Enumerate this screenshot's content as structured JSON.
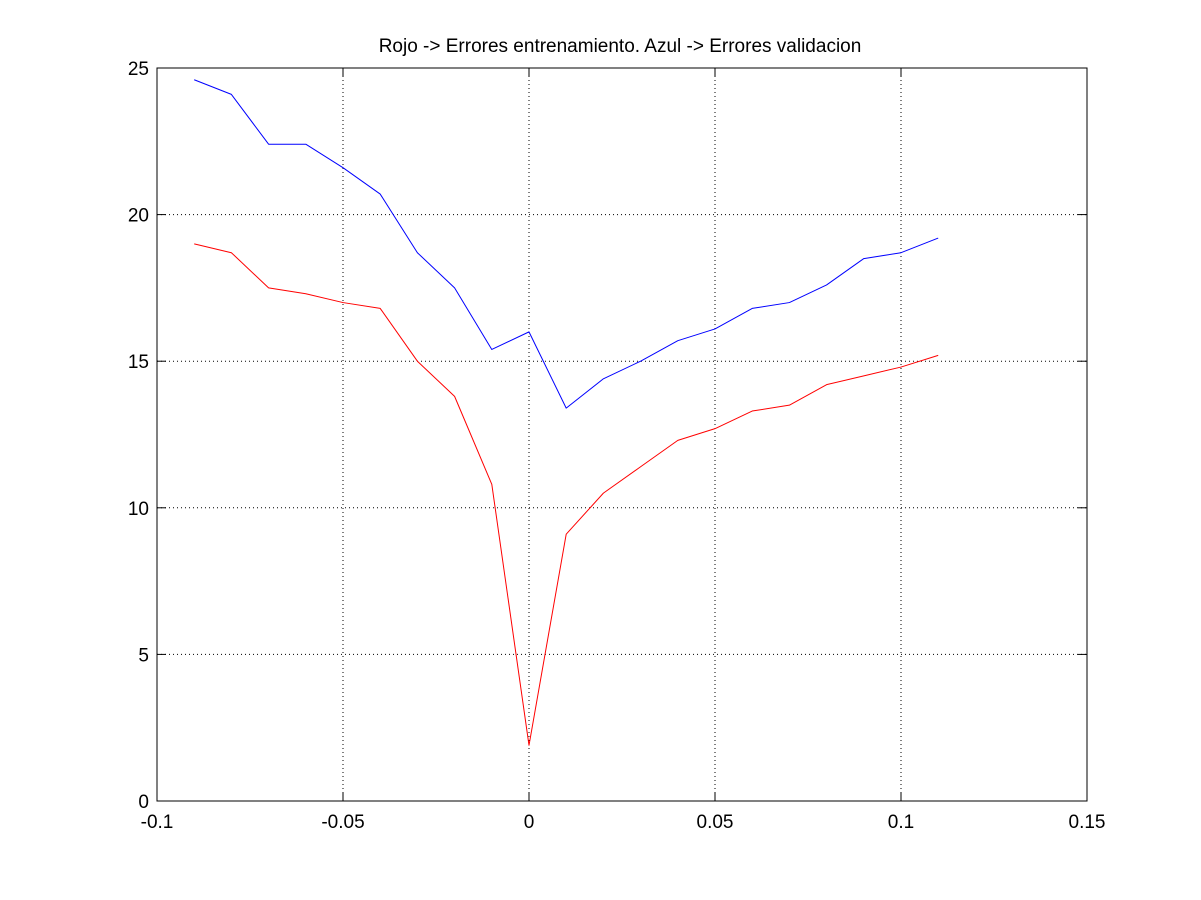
{
  "chart_data": {
    "type": "line",
    "title": "Rojo -> Errores entrenamiento. Azul -> Errores validacion",
    "xlabel": "",
    "ylabel": "",
    "xlim": [
      -0.1,
      0.15
    ],
    "ylim": [
      0,
      25
    ],
    "xticks": [
      -0.1,
      -0.05,
      0,
      0.05,
      0.1,
      0.15
    ],
    "xtick_labels": [
      "-0.1",
      "-0.05",
      "0",
      "0.05",
      "0.1",
      "0.15"
    ],
    "yticks": [
      0,
      5,
      10,
      15,
      20,
      25
    ],
    "ytick_labels": [
      "0",
      "5",
      "10",
      "15",
      "20",
      "25"
    ],
    "grid": true,
    "x": [
      -0.09,
      -0.08,
      -0.07,
      -0.06,
      -0.05,
      -0.04,
      -0.03,
      -0.02,
      -0.01,
      0,
      0.01,
      0.02,
      0.03,
      0.04,
      0.05,
      0.06,
      0.07,
      0.08,
      0.09,
      0.1,
      0.11
    ],
    "series": [
      {
        "color": "#0000ff",
        "values": [
          24.6,
          24.1,
          22.4,
          22.4,
          21.6,
          20.7,
          18.7,
          17.5,
          15.4,
          16.0,
          13.4,
          14.4,
          15.0,
          15.7,
          16.1,
          16.8,
          17.0,
          17.6,
          18.5,
          18.7,
          19.2
        ]
      },
      {
        "color": "#ff0000",
        "values": [
          19.0,
          18.7,
          17.5,
          17.3,
          17.0,
          16.8,
          15.0,
          13.8,
          10.8,
          1.9,
          9.1,
          10.5,
          11.4,
          12.3,
          12.7,
          13.3,
          13.5,
          14.2,
          14.5,
          14.8,
          15.2
        ]
      }
    ]
  }
}
